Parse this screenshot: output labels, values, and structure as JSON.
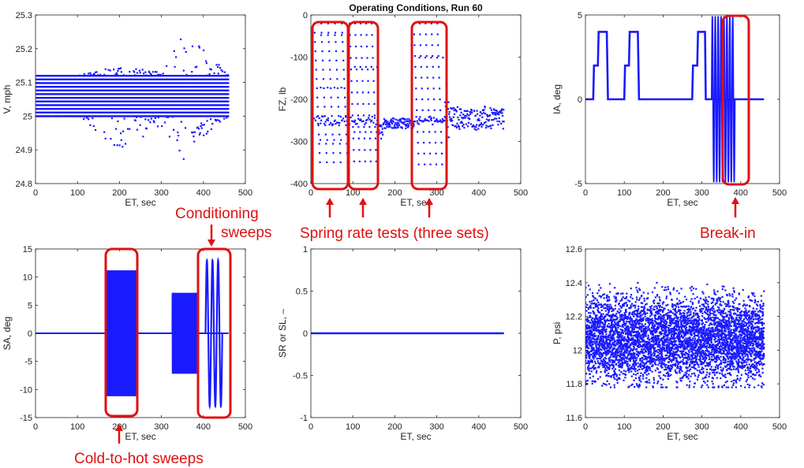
{
  "figure": {
    "title": "Operating Conditions, Run 60",
    "colors": {
      "series": "#1a1aff",
      "annotation": "#e01010",
      "axis": "#222222"
    }
  },
  "chart_data": [
    {
      "id": "V",
      "type": "scatter",
      "title": "",
      "xlabel": "ET, sec",
      "ylabel": "V, mph",
      "xlim": [
        0,
        500
      ],
      "ylim": [
        24.8,
        25.3
      ],
      "xticks": [
        "0",
        "100",
        "200",
        "300",
        "400",
        "500"
      ],
      "yticks": [
        "24.8",
        "24.9",
        "25",
        "25.1",
        "25.2",
        "25.3"
      ],
      "series": [
        {
          "x": [
            0,
            100,
            200,
            300,
            340,
            400,
            460
          ],
          "y_min": [
            25.0,
            25.0,
            24.9,
            24.97,
            24.84,
            24.94,
            25.0
          ],
          "y_max": [
            25.12,
            25.12,
            25.15,
            25.13,
            25.24,
            25.21,
            25.12
          ]
        }
      ]
    },
    {
      "id": "FZ",
      "type": "scatter",
      "title": "Operating Conditions, Run 60",
      "xlabel": "ET, sec",
      "ylabel": "FZ, lb",
      "xlim": [
        0,
        500
      ],
      "ylim": [
        -400,
        0
      ],
      "xticks": [
        "0",
        "100",
        "200",
        "300",
        "400",
        "500"
      ],
      "yticks": [
        "-400",
        "-300",
        "-200",
        "-100",
        "0"
      ],
      "series": [
        {
          "x": [
            0,
            90,
            160,
            240,
            320,
            460
          ],
          "y_min": [
            -360,
            -360,
            -360,
            -360,
            -300,
            -260
          ],
          "y_max": [
            -10,
            -20,
            -20,
            -20,
            -210,
            -225
          ]
        }
      ]
    },
    {
      "id": "IA",
      "type": "line",
      "title": "",
      "xlabel": "ET, sec",
      "ylabel": "IA, deg",
      "xlim": [
        0,
        500
      ],
      "ylim": [
        -5,
        5
      ],
      "xticks": [
        "0",
        "100",
        "200",
        "300",
        "400",
        "500"
      ],
      "yticks": [
        "-5",
        "0",
        "5"
      ],
      "series": [
        {
          "x": [
            0,
            20,
            22,
            32,
            34,
            55,
            58,
            70,
            72,
            100,
            102,
            112,
            114,
            135,
            138,
            150,
            152,
            275,
            277,
            288,
            290,
            308,
            310,
            325,
            385,
            460
          ],
          "y": [
            0,
            0,
            2,
            2,
            4,
            4,
            0,
            0,
            0,
            0,
            2,
            2,
            4,
            4,
            0,
            0,
            0,
            0,
            2,
            2,
            4,
            4,
            0,
            0,
            0,
            0
          ]
        }
      ]
    },
    {
      "id": "SA",
      "type": "line",
      "title": "",
      "xlabel": "ET, sec",
      "ylabel": "SA, deg",
      "xlim": [
        0,
        500
      ],
      "ylim": [
        -15,
        15
      ],
      "xticks": [
        "0",
        "100",
        "200",
        "300",
        "400",
        "500"
      ],
      "yticks": [
        "-15",
        "-10",
        "-5",
        "0",
        "5",
        "10",
        "15"
      ],
      "series": [
        {
          "segments": [
            {
              "x": [
                170,
                240
              ],
              "amplitude": 11.2
            },
            {
              "x": [
                325,
                385
              ],
              "amplitude": 7.2
            },
            {
              "x": [
                405,
                445
              ],
              "amplitude": 13
            }
          ]
        }
      ]
    },
    {
      "id": "SR",
      "type": "line",
      "title": "",
      "xlabel": "ET, sec",
      "ylabel": "SR or SL, –",
      "xlim": [
        0,
        500
      ],
      "ylim": [
        -1,
        1
      ],
      "xticks": [
        "0",
        "100",
        "200",
        "300",
        "400",
        "500"
      ],
      "yticks": [
        "-1",
        "-0.5",
        "0",
        "0.5",
        "1"
      ],
      "series": [
        {
          "x": [
            0,
            460
          ],
          "y": [
            0,
            0
          ]
        }
      ]
    },
    {
      "id": "P",
      "type": "scatter",
      "title": "",
      "xlabel": "ET, sec",
      "ylabel": "P, psi",
      "xlim": [
        0,
        500
      ],
      "ylim": [
        11.6,
        12.6
      ],
      "xticks": [
        "0",
        "100",
        "200",
        "300",
        "400",
        "500"
      ],
      "yticks": [
        "11.6",
        "11.8",
        "12",
        "12.2",
        "12.4",
        "12.6"
      ],
      "series": [
        {
          "x": [
            0,
            460
          ],
          "y_min": 11.78,
          "y_max": 12.4,
          "center": 12.07
        }
      ]
    }
  ],
  "annotations": {
    "spring_rate": "Spring rate tests (three sets)",
    "break_in": "Break-in",
    "conditioning_line1": "Conditioning",
    "conditioning_line2": "sweeps",
    "cold_to_hot": "Cold-to-hot sweeps"
  }
}
